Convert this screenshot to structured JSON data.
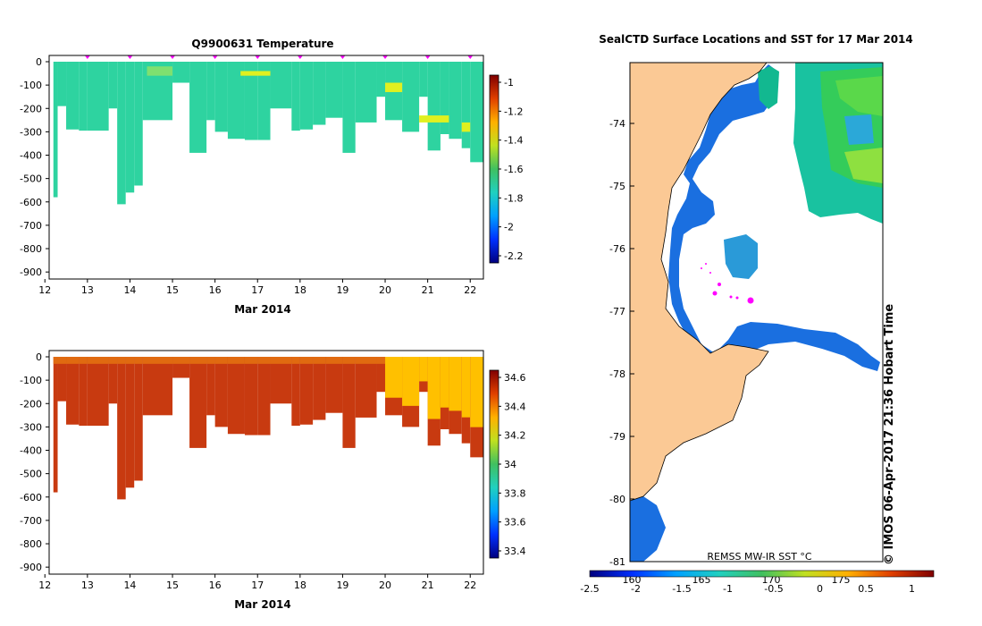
{
  "colors": {
    "land": "#fbc995",
    "coast": "#000000",
    "marker": "#ff00ff",
    "temp_fill": "#2ed3a0",
    "temp_warm": "#7fe070",
    "temp_hot": "#e0f020",
    "sal_fill": "#c83a10",
    "sal_mid": "#e06a10",
    "sal_fresh": "#ffc000"
  },
  "vertical_label": "© IMOS 06-Apr-2017 21:36 Hobart Time",
  "map": {
    "title": "SealCTD Surface Locations and SST for 17 Mar 2014",
    "lat_labels": [
      "-74",
      "-75",
      "-76",
      "-77",
      "-78",
      "-79",
      "-80",
      "-81"
    ],
    "lon_labels": [
      "160",
      "165",
      "170",
      "175"
    ],
    "sst_caption": "REMSS MW-IR SST °C",
    "colorbar_labels": [
      "-2.5",
      "-2",
      "-1.5",
      "-1",
      "-0.5",
      "0",
      "0.5",
      "1"
    ]
  },
  "chart_data": [
    {
      "type": "heatmap",
      "title": "Q9900631  Temperature",
      "xlabel": "Mar 2014",
      "ylabel": "",
      "x_ticks": [
        "12",
        "13",
        "14",
        "15",
        "16",
        "17",
        "18",
        "19",
        "20",
        "21",
        "22"
      ],
      "y_ticks": [
        "0",
        "-100",
        "-200",
        "-300",
        "-400",
        "-500",
        "-600",
        "-700",
        "-800",
        "-900"
      ],
      "xlim": [
        12,
        22
      ],
      "ylim": [
        -930,
        0
      ],
      "colorbar_labels": [
        "-1",
        "-1.2",
        "-1.4",
        "-1.6",
        "-1.8",
        "-2",
        "-2.2"
      ],
      "colorbar_range": [
        -2.35,
        -0.9
      ],
      "profile_days": [
        12.2,
        12.3,
        12.5,
        12.8,
        13.0,
        13.5,
        13.7,
        13.9,
        14.1,
        14.3,
        15.0,
        15.4,
        15.8,
        16.0,
        16.3,
        16.7,
        17.0,
        17.3,
        17.8,
        18.0,
        18.3,
        18.6,
        19.0,
        19.3,
        19.8,
        20.0,
        20.4,
        20.8,
        21.0,
        21.3,
        21.5,
        21.8,
        22.0
      ],
      "profile_max_depth": [
        580,
        190,
        290,
        295,
        295,
        200,
        610,
        560,
        530,
        250,
        90,
        390,
        250,
        300,
        330,
        335,
        335,
        200,
        295,
        290,
        270,
        240,
        390,
        260,
        150,
        250,
        300,
        150,
        380,
        310,
        330,
        370,
        430
      ]
    },
    {
      "type": "heatmap",
      "title": "",
      "xlabel": "Mar 2014",
      "ylabel": "",
      "x_ticks": [
        "12",
        "13",
        "14",
        "15",
        "16",
        "17",
        "18",
        "19",
        "20",
        "21",
        "22"
      ],
      "y_ticks": [
        "0",
        "-100",
        "-200",
        "-300",
        "-400",
        "-500",
        "-600",
        "-700",
        "-800",
        "-900"
      ],
      "xlim": [
        12,
        22
      ],
      "ylim": [
        -930,
        0
      ],
      "colorbar_labels": [
        "34.6",
        "34.4",
        "34.2",
        "34",
        "33.8",
        "33.6",
        "33.4"
      ],
      "colorbar_range": [
        33.25,
        34.75
      ]
    }
  ]
}
